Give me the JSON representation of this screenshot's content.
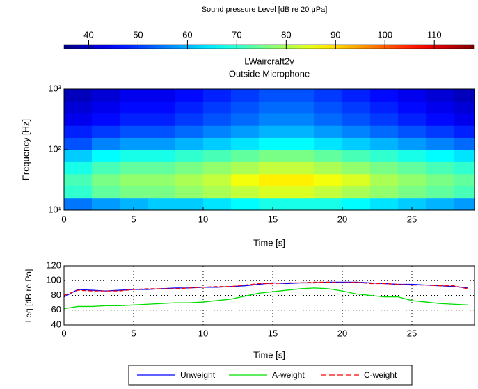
{
  "chart_data": [
    {
      "type": "heatmap",
      "title": "LWaircraft2v",
      "subtitle": "Outside Microphone",
      "xlabel": "Time   [s]",
      "ylabel": "Frequency   [Hz]",
      "x_edges": [
        0,
        2,
        4,
        6,
        8,
        10,
        12,
        14,
        16,
        18,
        20,
        22,
        24,
        26,
        28,
        29.5
      ],
      "y_edges": [
        10,
        15.8,
        25.1,
        39.8,
        63.1,
        100,
        158,
        251,
        398,
        631,
        1000
      ],
      "z": [
        [
          55,
          58,
          60,
          62,
          62,
          64,
          66,
          68,
          68,
          68,
          66,
          64,
          62,
          60,
          58
        ],
        [
          70,
          74,
          76,
          76,
          78,
          80,
          82,
          84,
          84,
          82,
          80,
          78,
          76,
          74,
          72
        ],
        [
          72,
          76,
          78,
          78,
          80,
          82,
          86,
          88,
          88,
          86,
          84,
          80,
          78,
          76,
          74
        ],
        [
          68,
          72,
          74,
          74,
          76,
          78,
          80,
          82,
          82,
          80,
          78,
          76,
          74,
          72,
          70
        ],
        [
          62,
          66,
          68,
          68,
          70,
          72,
          74,
          76,
          76,
          74,
          72,
          70,
          68,
          66,
          64
        ],
        [
          52,
          56,
          58,
          58,
          60,
          62,
          64,
          66,
          66,
          64,
          62,
          60,
          58,
          56,
          54
        ],
        [
          48,
          50,
          52,
          52,
          54,
          56,
          58,
          60,
          60,
          58,
          56,
          54,
          52,
          50,
          48
        ],
        [
          44,
          46,
          48,
          48,
          50,
          52,
          54,
          56,
          56,
          54,
          52,
          50,
          48,
          46,
          44
        ],
        [
          42,
          44,
          46,
          46,
          48,
          50,
          52,
          54,
          54,
          52,
          50,
          48,
          46,
          44,
          42
        ],
        [
          40,
          42,
          44,
          44,
          46,
          48,
          50,
          52,
          52,
          50,
          48,
          46,
          44,
          42,
          40
        ]
      ],
      "xlim": [
        0,
        29.5
      ],
      "xticks": [
        0,
        5,
        10,
        15,
        20,
        25
      ],
      "ylim": [
        10,
        1000
      ],
      "ylog": true,
      "yticks": [
        {
          "value": 10,
          "label": "10¹"
        },
        {
          "value": 100,
          "label": "10²"
        },
        {
          "value": 1000,
          "label": "10³"
        }
      ],
      "colormap": "jet",
      "colorbar": {
        "label": "Sound pressure Level   [dB  re  20 μPa]",
        "lim": [
          35,
          118
        ],
        "ticks": [
          40,
          50,
          60,
          70,
          80,
          90,
          100,
          110
        ]
      }
    },
    {
      "type": "line",
      "xlabel": "Time   [s]",
      "ylabel": "Leq   [dB re Pa]",
      "x": [
        0,
        1,
        2,
        3,
        4,
        5,
        6,
        7,
        8,
        9,
        10,
        11,
        12,
        13,
        14,
        15,
        16,
        17,
        18,
        19,
        20,
        21,
        22,
        23,
        24,
        25,
        26,
        27,
        28,
        29
      ],
      "series": [
        {
          "name": "Unweight",
          "color": "#0000ff",
          "dash": false,
          "values": [
            78,
            88,
            87,
            86,
            87,
            88,
            88,
            89,
            90,
            90,
            91,
            91,
            92,
            93,
            95,
            97,
            96,
            97,
            97,
            98,
            98,
            98,
            97,
            96,
            95,
            95,
            94,
            93,
            92,
            90
          ]
        },
        {
          "name": "A-weight",
          "color": "#00dd00",
          "dash": false,
          "values": [
            62,
            65,
            65,
            66,
            66,
            67,
            68,
            69,
            70,
            70,
            71,
            73,
            75,
            79,
            83,
            85,
            87,
            89,
            90,
            89,
            86,
            82,
            80,
            78,
            78,
            73,
            71,
            69,
            68,
            67
          ]
        },
        {
          "name": "C-weight",
          "color": "#ff0000",
          "dash": true,
          "values": [
            80,
            87,
            86,
            86,
            86,
            88,
            89,
            89,
            89,
            90,
            91,
            92,
            92,
            94,
            96,
            96,
            97,
            97,
            98,
            98,
            97,
            98,
            96,
            96,
            95,
            94,
            94,
            93,
            93,
            89
          ]
        }
      ],
      "xlim": [
        0,
        29.5
      ],
      "xticks": [
        0,
        5,
        10,
        15,
        20,
        25
      ],
      "ylim": [
        40,
        120
      ],
      "yticks": [
        40,
        60,
        80,
        100,
        120
      ],
      "grid": true,
      "legend": "bottom"
    }
  ]
}
